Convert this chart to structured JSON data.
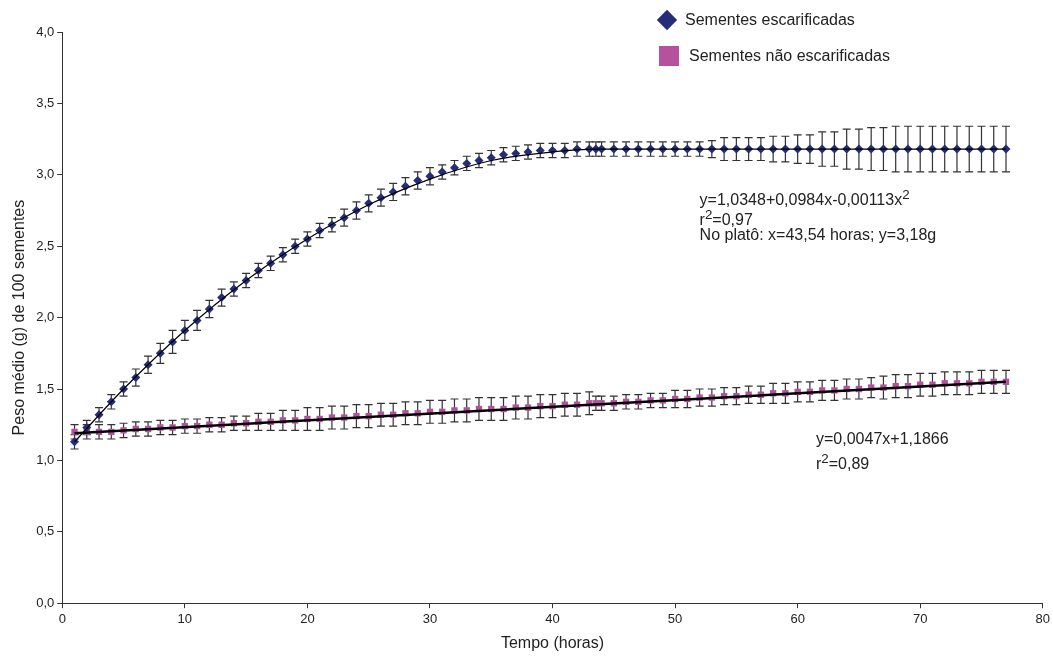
{
  "chart_data": {
    "type": "scatter",
    "xlabel": "Tempo (horas)",
    "ylabel": "Peso médio (g) de 100 sementes",
    "xlim": [
      0,
      80
    ],
    "xticks": [
      0,
      10,
      20,
      30,
      40,
      50,
      60,
      70,
      80
    ],
    "ylim": [
      0,
      4
    ],
    "yticks": [
      {
        "value": 0,
        "label": "0,0"
      },
      {
        "value": 0.5,
        "label": "0,5"
      },
      {
        "value": 1,
        "label": "1,0"
      },
      {
        "value": 1.5,
        "label": "1,5"
      },
      {
        "value": 2,
        "label": "2,0"
      },
      {
        "value": 2.5,
        "label": "2,5"
      },
      {
        "value": 3,
        "label": "3,0"
      },
      {
        "value": 3.5,
        "label": "3,5"
      },
      {
        "value": 4,
        "label": "4,0"
      }
    ],
    "grid": false,
    "legend": "top right",
    "x": [
      1,
      2,
      3,
      4,
      5,
      6,
      7,
      8,
      9,
      10,
      11,
      12,
      13,
      14,
      15,
      16,
      17,
      18,
      19,
      20,
      21,
      22,
      23,
      24,
      25,
      26,
      27,
      28,
      29,
      30,
      31,
      32,
      33,
      34,
      35,
      36,
      37,
      38,
      39,
      40,
      41,
      42,
      43,
      43.54,
      44,
      45,
      46,
      47,
      48,
      49,
      50,
      51,
      52,
      53,
      54,
      55,
      56,
      57,
      58,
      59,
      60,
      61,
      62,
      63,
      64,
      65,
      66,
      67,
      68,
      69,
      70,
      71,
      72,
      73,
      74,
      75,
      76,
      77
    ],
    "series": [
      {
        "name": "Sementes escarificadas",
        "marker": "diamond",
        "color": "#252d78",
        "values": [
          1.13,
          1.23,
          1.32,
          1.41,
          1.5,
          1.58,
          1.67,
          1.75,
          1.83,
          1.91,
          1.98,
          2.06,
          2.14,
          2.2,
          2.26,
          2.33,
          2.38,
          2.44,
          2.5,
          2.55,
          2.61,
          2.65,
          2.7,
          2.75,
          2.8,
          2.84,
          2.88,
          2.92,
          2.96,
          2.99,
          3.02,
          3.05,
          3.08,
          3.1,
          3.12,
          3.14,
          3.15,
          3.16,
          3.17,
          3.17,
          3.17,
          3.18,
          3.18,
          3.18,
          3.18,
          3.18,
          3.18,
          3.18,
          3.18,
          3.18,
          3.18,
          3.18,
          3.18,
          3.18,
          3.18,
          3.18,
          3.18,
          3.18,
          3.18,
          3.18,
          3.18,
          3.18,
          3.18,
          3.18,
          3.18,
          3.18,
          3.18,
          3.18,
          3.18,
          3.18,
          3.18,
          3.18,
          3.18,
          3.18,
          3.18,
          3.18,
          3.18,
          3.18
        ],
        "errors": [
          0.05,
          0.05,
          0.05,
          0.05,
          0.05,
          0.06,
          0.06,
          0.07,
          0.08,
          0.07,
          0.07,
          0.06,
          0.06,
          0.05,
          0.05,
          0.05,
          0.05,
          0.05,
          0.05,
          0.05,
          0.05,
          0.05,
          0.06,
          0.06,
          0.06,
          0.06,
          0.06,
          0.06,
          0.06,
          0.06,
          0.05,
          0.05,
          0.05,
          0.05,
          0.05,
          0.05,
          0.05,
          0.05,
          0.05,
          0.05,
          0.05,
          0.05,
          0.05,
          0.05,
          0.05,
          0.05,
          0.05,
          0.05,
          0.05,
          0.05,
          0.05,
          0.05,
          0.05,
          0.06,
          0.08,
          0.08,
          0.08,
          0.08,
          0.09,
          0.09,
          0.1,
          0.1,
          0.12,
          0.12,
          0.14,
          0.14,
          0.15,
          0.15,
          0.16,
          0.16,
          0.16,
          0.16,
          0.16,
          0.16,
          0.16,
          0.16,
          0.16,
          0.16
        ]
      },
      {
        "name": "Sementes não escarificadas",
        "marker": "square",
        "color": "#b5519e",
        "values": [
          1.2,
          1.2,
          1.2,
          1.2,
          1.21,
          1.22,
          1.22,
          1.23,
          1.23,
          1.24,
          1.24,
          1.25,
          1.25,
          1.26,
          1.26,
          1.27,
          1.27,
          1.28,
          1.28,
          1.29,
          1.29,
          1.3,
          1.3,
          1.31,
          1.31,
          1.32,
          1.32,
          1.33,
          1.33,
          1.34,
          1.34,
          1.35,
          1.35,
          1.36,
          1.36,
          1.36,
          1.37,
          1.37,
          1.38,
          1.38,
          1.39,
          1.39,
          1.4,
          1.4,
          1.4,
          1.4,
          1.41,
          1.41,
          1.42,
          1.42,
          1.43,
          1.43,
          1.44,
          1.44,
          1.45,
          1.45,
          1.46,
          1.46,
          1.47,
          1.47,
          1.48,
          1.48,
          1.49,
          1.49,
          1.5,
          1.5,
          1.51,
          1.51,
          1.52,
          1.52,
          1.53,
          1.53,
          1.54,
          1.54,
          1.54,
          1.55,
          1.55,
          1.55
        ],
        "errors": [
          0.05,
          0.05,
          0.05,
          0.05,
          0.05,
          0.05,
          0.05,
          0.05,
          0.05,
          0.05,
          0.05,
          0.05,
          0.05,
          0.05,
          0.05,
          0.06,
          0.06,
          0.07,
          0.07,
          0.08,
          0.08,
          0.08,
          0.08,
          0.08,
          0.08,
          0.08,
          0.08,
          0.08,
          0.08,
          0.08,
          0.08,
          0.08,
          0.08,
          0.08,
          0.08,
          0.08,
          0.08,
          0.08,
          0.08,
          0.08,
          0.08,
          0.08,
          0.08,
          0.05,
          0.05,
          0.05,
          0.05,
          0.05,
          0.05,
          0.05,
          0.06,
          0.06,
          0.06,
          0.06,
          0.06,
          0.06,
          0.06,
          0.06,
          0.07,
          0.07,
          0.07,
          0.07,
          0.07,
          0.07,
          0.07,
          0.07,
          0.07,
          0.08,
          0.08,
          0.08,
          0.08,
          0.08,
          0.08,
          0.08,
          0.08,
          0.08,
          0.08,
          0.08
        ]
      },
      {
        "type": "line",
        "marker": "none",
        "color": "#000000",
        "x": [
          1,
          5,
          10,
          15,
          20,
          25,
          30,
          35,
          40,
          43.54,
          77
        ],
        "values": [
          1.13,
          1.5,
          1.91,
          2.26,
          2.55,
          2.79,
          2.97,
          3.1,
          3.16,
          3.18,
          3.18
        ]
      },
      {
        "type": "line",
        "marker": "none",
        "color": "#000000",
        "x": [
          1,
          77
        ],
        "values": [
          1.19,
          1.55
        ]
      }
    ],
    "annotations": [
      "y=1,0348+0,0984x-0,00113x$^{2}$",
      "r$^{2}$=0,97",
      "No platô: x=43,54 horas; y=3,18g",
      "y=0,0047x+1,1866",
      "r$^{2}$=0,89"
    ]
  }
}
